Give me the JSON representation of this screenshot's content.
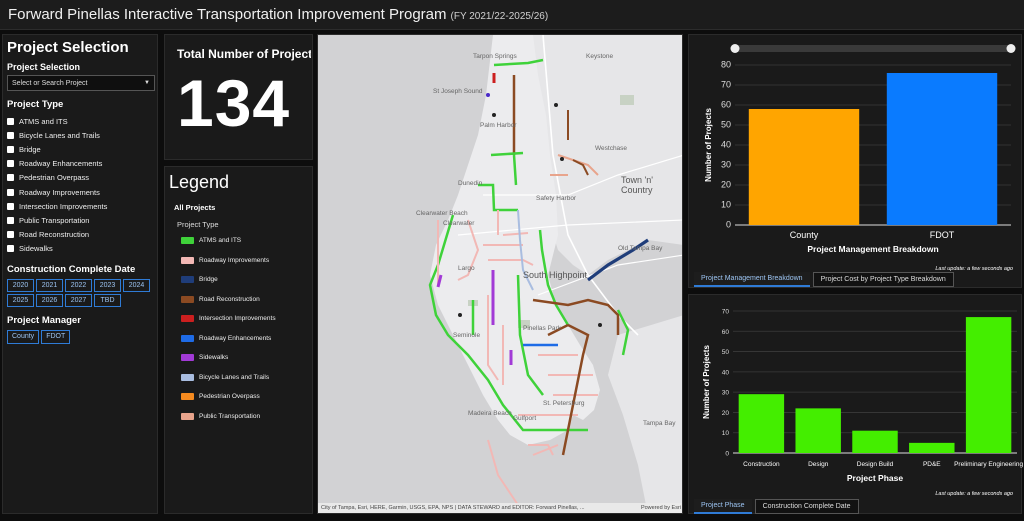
{
  "title": {
    "main": "Forward Pinellas Interactive Transportation Improvement Program",
    "sub": "(FY 2021/22-2025/26)"
  },
  "selection": {
    "heading": "Project Selection",
    "select_label": "Project Selection",
    "select_placeholder": "Select or Search Project",
    "type_heading": "Project Type",
    "types": [
      "ATMS and ITS",
      "Bicycle Lanes and Trails",
      "Bridge",
      "Roadway Enhancements",
      "Pedestrian Overpass",
      "Roadway Improvements",
      "Intersection Improvements",
      "Public Transportation",
      "Road Reconstruction",
      "Sidewalks"
    ],
    "date_heading": "Construction Complete Date",
    "years": [
      "2020",
      "2021",
      "2022",
      "2023",
      "2024",
      "2025",
      "2026",
      "2027",
      "TBD"
    ],
    "manager_heading": "Project Manager",
    "managers": [
      "County",
      "FDOT"
    ]
  },
  "total": {
    "label": "Total Number of Projects",
    "value": "134"
  },
  "legend": {
    "title": "Legend",
    "all": "All Projects",
    "type_label": "Project Type",
    "items": [
      {
        "label": "ATMS and ITS",
        "color": "#3fd23a"
      },
      {
        "label": "Roadway Improvements",
        "color": "#f2b8b5"
      },
      {
        "label": "Bridge",
        "color": "#1f3d7a"
      },
      {
        "label": "Road Reconstruction",
        "color": "#8b4a22"
      },
      {
        "label": "Intersection Improvements",
        "color": "#cc1f1f"
      },
      {
        "label": "Roadway Enhancements",
        "color": "#1e6be6"
      },
      {
        "label": "Sidewalks",
        "color": "#a23ad6"
      },
      {
        "label": "Bicycle Lanes and Trails",
        "color": "#a9bde0"
      },
      {
        "label": "Pedestrian Overpass",
        "color": "#f58a1f"
      },
      {
        "label": "Public Transportation",
        "color": "#e8a48c"
      }
    ]
  },
  "map": {
    "places": [
      "Keystone",
      "Tarpon Springs",
      "St Joseph Sound",
      "Palm Harbor",
      "Westchase",
      "Town 'n' Country",
      "Dunedin",
      "Clearwater Beach",
      "Clearwater",
      "Safety Harbor",
      "Old Tampa Bay",
      "Largo",
      "South Highpoint",
      "Pinellas Park",
      "Seminole",
      "Madeira Beach",
      "Gulfport",
      "St. Petersburg",
      "Tampa Bay"
    ],
    "attribution": "City of Tampa, Esri, HERE, Garmin, USGS, EPA, NPS | DATA STEWARD and EDITOR: Forward Pinellas, ...",
    "powered": "Powered by Esri"
  },
  "chart_data": [
    {
      "type": "bar",
      "title": "Project Management Breakdown",
      "categories": [
        "County",
        "FDOT"
      ],
      "values": [
        58,
        76
      ],
      "colors": [
        "#ffa500",
        "#0a7bff"
      ],
      "xlabel": "Project Management Breakdown",
      "ylabel": "Number of Projects",
      "ylim": [
        0,
        80
      ],
      "yticks": [
        0,
        10,
        20,
        30,
        40,
        50,
        60,
        70,
        80
      ],
      "grid": true
    },
    {
      "type": "bar",
      "title": "Project Phase",
      "categories": [
        "Construction",
        "Design",
        "Design Build",
        "PD&E",
        "Preliminary Engineering"
      ],
      "values": [
        29,
        22,
        11,
        5,
        67
      ],
      "colors": [
        "#44ee00",
        "#44ee00",
        "#44ee00",
        "#44ee00",
        "#44ee00"
      ],
      "xlabel": "Project Phase",
      "ylabel": "Number of Projects",
      "ylim": [
        0,
        70
      ],
      "yticks": [
        0,
        10,
        20,
        30,
        40,
        50,
        60,
        70
      ],
      "grid": true
    }
  ],
  "chart1": {
    "tabs": [
      "Project Management Breakdown",
      "Project Cost by Project Type Breakdown"
    ],
    "updated": "Last update: a few seconds ago"
  },
  "chart2": {
    "tabs": [
      "Project Phase",
      "Construction Complete Date"
    ],
    "updated": "Last update: a few seconds ago"
  }
}
